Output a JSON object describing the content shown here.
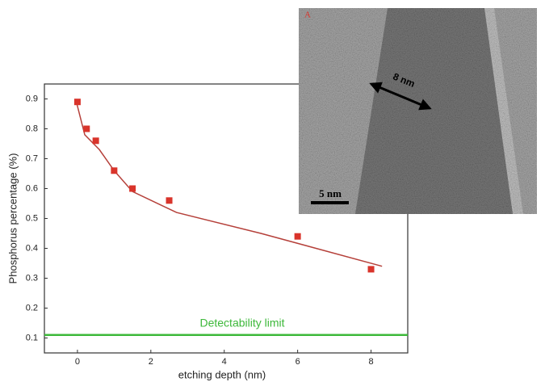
{
  "chart_data": {
    "type": "scatter",
    "xlabel": "etching depth (nm)",
    "ylabel": "Phosphorus percentage (%)",
    "x": [
      0,
      0.25,
      0.5,
      1,
      1.5,
      2.5,
      6,
      8
    ],
    "values": [
      0.89,
      0.8,
      0.76,
      0.66,
      0.6,
      0.56,
      0.44,
      0.33
    ],
    "color": "#d9342b",
    "fit": {
      "x": [
        -0.05,
        0.2,
        0.6,
        1,
        1.5,
        2.7,
        5,
        8.3
      ],
      "values": [
        0.9,
        0.78,
        0.73,
        0.66,
        0.59,
        0.52,
        0.45,
        0.34
      ],
      "color": "#b5403a"
    },
    "limit": {
      "value": 0.11,
      "label": "Detectability limit",
      "color": "#3db83a"
    },
    "xlim": [
      -0.9,
      9
    ],
    "ylim": [
      0.05,
      0.95
    ],
    "xticks": [
      0,
      2,
      4,
      6,
      8
    ],
    "yticks": [
      0.1,
      0.2,
      0.3,
      0.4,
      0.5,
      0.6,
      0.7,
      0.8,
      0.9
    ]
  },
  "inset": {
    "panel_label": "A",
    "arrow_label": "8 nm",
    "scale_bar_label": "5 nm"
  }
}
